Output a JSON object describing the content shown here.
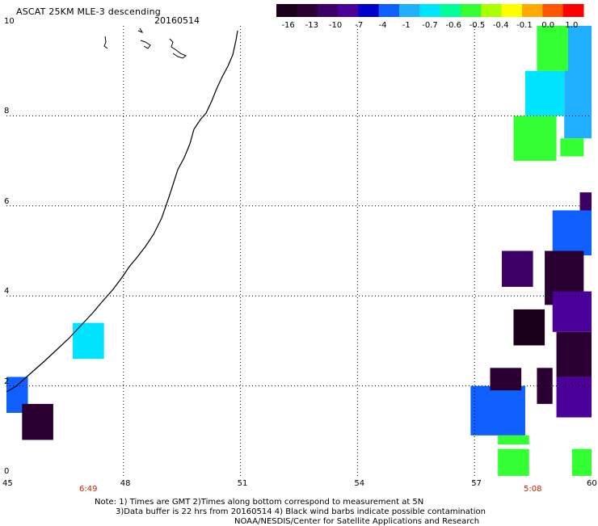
{
  "title": "ASCAT 25KM MLE-3 descending",
  "date": "20160514",
  "colorbar": {
    "labels": [
      "-16",
      "-13",
      "-10",
      "-7",
      "-4",
      "-1",
      "-0.7",
      "-0.6",
      "-0.5",
      "-0.4",
      "-0.1",
      "0.0",
      "1.0"
    ],
    "colors": [
      "#1a001a",
      "#2a0033",
      "#3c0066",
      "#4b0099",
      "#0000cc",
      "#1060ff",
      "#20b0ff",
      "#00e5ff",
      "#00ff99",
      "#33ff33",
      "#aaff00",
      "#ffff00",
      "#ffaa00",
      "#ff5500",
      "#ff0000"
    ]
  },
  "axes": {
    "x_ticks": [
      "45",
      "48",
      "51",
      "54",
      "57",
      "60"
    ],
    "y_ticks": [
      "0",
      "2",
      "4",
      "6",
      "8",
      "10"
    ],
    "x_range": [
      45,
      60
    ],
    "y_range": [
      0,
      10
    ]
  },
  "times": [
    "6:49",
    "5:08"
  ],
  "notes": [
    "Note: 1) Times are GMT 2)Times along bottom correspond to measurement at 5N",
    "3)Data buffer is 22 hrs from 20160514 4) Black wind barbs indicate possible contamination",
    "NOAA/NESDIS/Center for Satellite Applications and Research"
  ],
  "cells": [
    {
      "lon": 46.7,
      "lat": 2.6,
      "w": 0.8,
      "h": 0.8,
      "color": "#00e5ff"
    },
    {
      "lon": 45.0,
      "lat": 1.4,
      "w": 0.55,
      "h": 0.8,
      "color": "#1060ff"
    },
    {
      "lon": 45.4,
      "lat": 0.8,
      "w": 0.8,
      "h": 0.8,
      "color": "#2a0033"
    },
    {
      "lon": 58.0,
      "lat": 7.0,
      "w": 1.1,
      "h": 1.0,
      "color": "#33ff33"
    },
    {
      "lon": 59.3,
      "lat": 7.5,
      "w": 0.7,
      "h": 2.5,
      "color": "#20b0ff"
    },
    {
      "lon": 58.3,
      "lat": 8.0,
      "w": 1.0,
      "h": 1.0,
      "color": "#00e5ff"
    },
    {
      "lon": 58.6,
      "lat": 9.0,
      "w": 0.8,
      "h": 1.0,
      "color": "#33ff33"
    },
    {
      "lon": 59.2,
      "lat": 7.1,
      "w": 0.6,
      "h": 0.4,
      "color": "#33ff33"
    },
    {
      "lon": 59.7,
      "lat": 5.3,
      "w": 0.3,
      "h": 1.0,
      "color": "#3c0066"
    },
    {
      "lon": 59.0,
      "lat": 4.9,
      "w": 1.0,
      "h": 1.0,
      "color": "#1060ff"
    },
    {
      "lon": 57.7,
      "lat": 4.2,
      "w": 0.8,
      "h": 0.8,
      "color": "#3c0066"
    },
    {
      "lon": 58.8,
      "lat": 3.8,
      "w": 1.0,
      "h": 1.2,
      "color": "#2a0033"
    },
    {
      "lon": 59.0,
      "lat": 3.2,
      "w": 1.0,
      "h": 0.9,
      "color": "#4b0099"
    },
    {
      "lon": 58.0,
      "lat": 2.9,
      "w": 0.8,
      "h": 0.8,
      "color": "#1a001a"
    },
    {
      "lon": 59.1,
      "lat": 2.2,
      "w": 0.9,
      "h": 1.0,
      "color": "#2a0033"
    },
    {
      "lon": 58.6,
      "lat": 1.6,
      "w": 0.4,
      "h": 0.8,
      "color": "#2a0033"
    },
    {
      "lon": 59.1,
      "lat": 1.3,
      "w": 0.9,
      "h": 0.9,
      "color": "#4b0099"
    },
    {
      "lon": 56.9,
      "lat": 0.9,
      "w": 1.4,
      "h": 1.1,
      "color": "#1060ff"
    },
    {
      "lon": 57.4,
      "lat": 1.9,
      "w": 0.8,
      "h": 0.5,
      "color": "#2a0033"
    },
    {
      "lon": 57.6,
      "lat": 0.7,
      "w": 0.8,
      "h": 0.2,
      "color": "#33ff33"
    },
    {
      "lon": 57.6,
      "lat": 0.0,
      "w": 0.8,
      "h": 0.6,
      "color": "#33ff33"
    },
    {
      "lon": 59.5,
      "lat": 0.0,
      "w": 0.5,
      "h": 0.6,
      "color": "#33ff33"
    }
  ]
}
